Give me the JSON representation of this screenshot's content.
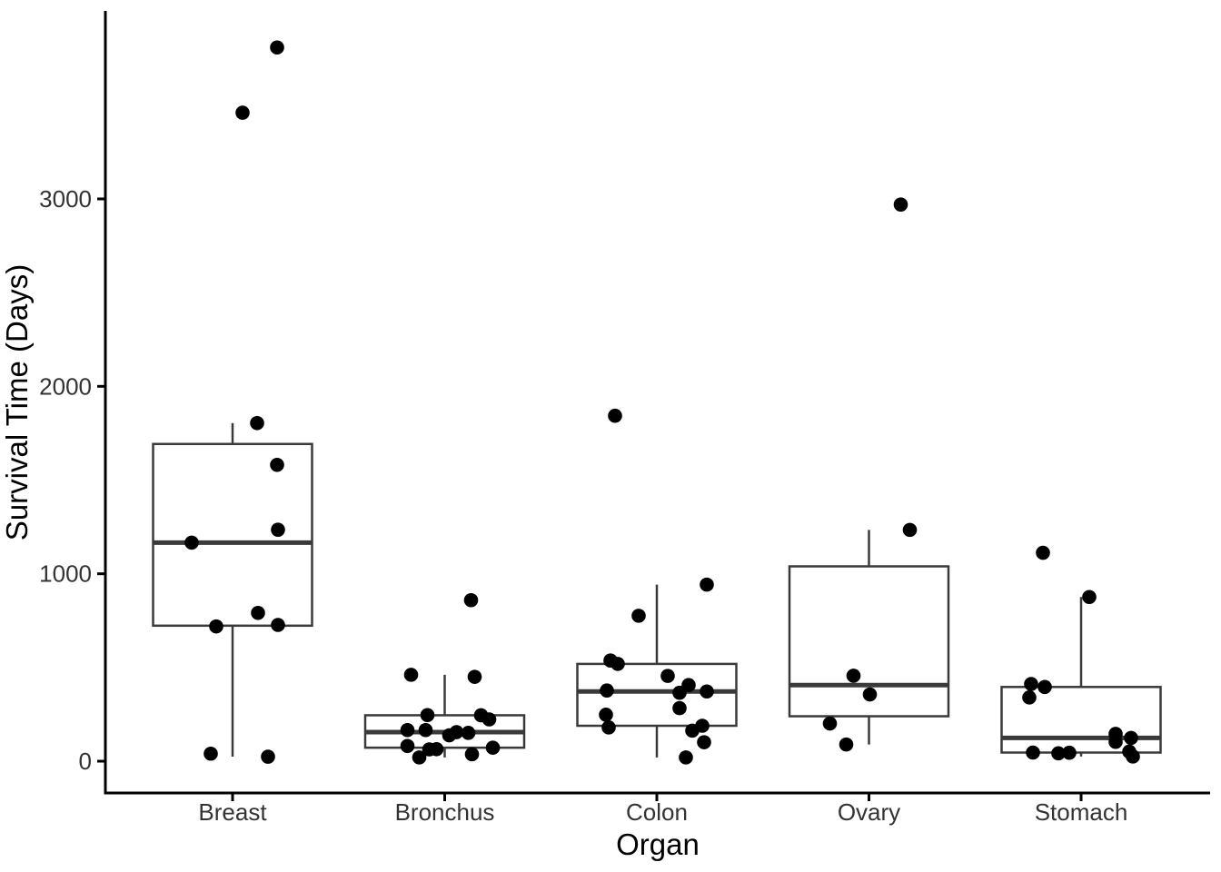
{
  "colors": {
    "background": "#ffffff",
    "axis": "#000000",
    "box_stroke": "#3a3a3a",
    "box_fill": "#ffffff",
    "point": "#000000",
    "tick_text": "#333333",
    "title_text": "#000000"
  },
  "chart_data": {
    "type": "boxplot",
    "overlay": "jittered points",
    "title": "",
    "xlabel": "Organ",
    "ylabel": "Survival Time (Days)",
    "categories": [
      "Breast",
      "Bronchus",
      "Colon",
      "Ovary",
      "Stomach"
    ],
    "y_ticks": [
      0,
      1000,
      2000,
      3000
    ],
    "ylim": [
      0,
      4000
    ],
    "grid": "off",
    "legend": "none",
    "series": [
      {
        "name": "Breast",
        "values": [
          1235,
          24,
          1581,
          1166,
          40,
          727,
          3808,
          791,
          1804,
          3460,
          719
        ],
        "box": {
          "lower_whisker": 24,
          "q1": 723,
          "median": 1166,
          "q3": 1692.5,
          "upper_whisker": 1804
        },
        "points": [
          {
            "v": 3808,
            "dx": 49
          },
          {
            "v": 3460,
            "dx": 11
          },
          {
            "v": 1804,
            "dx": 27
          },
          {
            "v": 1581,
            "dx": 49
          },
          {
            "v": 1235,
            "dx": 50
          },
          {
            "v": 1166,
            "dx": -45
          },
          {
            "v": 791,
            "dx": 28
          },
          {
            "v": 727,
            "dx": 50
          },
          {
            "v": 719,
            "dx": -18
          },
          {
            "v": 40,
            "dx": -24
          },
          {
            "v": 24,
            "dx": 39
          }
        ]
      },
      {
        "name": "Bronchus",
        "values": [
          81,
          461,
          20,
          450,
          246,
          166,
          63,
          64,
          155,
          859,
          151,
          166,
          37,
          223,
          138,
          72,
          245
        ],
        "box": {
          "lower_whisker": 20,
          "q1": 72,
          "median": 155,
          "q3": 245,
          "upper_whisker": 461
        },
        "points": [
          {
            "v": 859,
            "dx": 29
          },
          {
            "v": 461,
            "dx": -37
          },
          {
            "v": 450,
            "dx": 33
          },
          {
            "v": 246,
            "dx": -19
          },
          {
            "v": 245,
            "dx": 40
          },
          {
            "v": 223,
            "dx": 49
          },
          {
            "v": 166,
            "dx": -41
          },
          {
            "v": 166,
            "dx": -21
          },
          {
            "v": 155,
            "dx": 13
          },
          {
            "v": 151,
            "dx": 26
          },
          {
            "v": 138,
            "dx": 5
          },
          {
            "v": 81,
            "dx": -41
          },
          {
            "v": 72,
            "dx": 53
          },
          {
            "v": 64,
            "dx": -9
          },
          {
            "v": 63,
            "dx": -17
          },
          {
            "v": 37,
            "dx": 30
          },
          {
            "v": 20,
            "dx": -28
          }
        ]
      },
      {
        "name": "Colon",
        "values": [
          248,
          377,
          189,
          1843,
          180,
          537,
          519,
          455,
          406,
          365,
          942,
          776,
          372,
          163,
          101,
          20,
          283
        ],
        "box": {
          "lower_whisker": 20,
          "q1": 189,
          "median": 372,
          "q3": 519,
          "upper_whisker": 942
        },
        "points": [
          {
            "v": 1843,
            "dx": -46
          },
          {
            "v": 942,
            "dx": 55
          },
          {
            "v": 776,
            "dx": -20
          },
          {
            "v": 537,
            "dx": -51
          },
          {
            "v": 519,
            "dx": -43
          },
          {
            "v": 455,
            "dx": 12
          },
          {
            "v": 406,
            "dx": 35
          },
          {
            "v": 377,
            "dx": -55
          },
          {
            "v": 372,
            "dx": 55
          },
          {
            "v": 365,
            "dx": 25
          },
          {
            "v": 283,
            "dx": 25
          },
          {
            "v": 248,
            "dx": -56
          },
          {
            "v": 189,
            "dx": 50
          },
          {
            "v": 180,
            "dx": -53
          },
          {
            "v": 163,
            "dx": 39
          },
          {
            "v": 101,
            "dx": 52
          },
          {
            "v": 20,
            "dx": 32
          }
        ]
      },
      {
        "name": "Ovary",
        "values": [
          1234,
          89,
          201,
          356,
          2970,
          456
        ],
        "box": {
          "lower_whisker": 89,
          "q1": 239.75,
          "median": 406,
          "q3": 1039.5,
          "upper_whisker": 1234
        },
        "points": [
          {
            "v": 2970,
            "dx": 35
          },
          {
            "v": 1234,
            "dx": 45
          },
          {
            "v": 456,
            "dx": -17
          },
          {
            "v": 356,
            "dx": 1
          },
          {
            "v": 201,
            "dx": -43
          },
          {
            "v": 89,
            "dx": -25
          }
        ]
      },
      {
        "name": "Stomach",
        "values": [
          124,
          42,
          25,
          45,
          412,
          51,
          1112,
          46,
          103,
          876,
          146,
          340,
          396
        ],
        "box": {
          "lower_whisker": 25,
          "q1": 46,
          "median": 124,
          "q3": 396,
          "upper_whisker": 876
        },
        "points": [
          {
            "v": 1112,
            "dx": -42
          },
          {
            "v": 876,
            "dx": 9
          },
          {
            "v": 412,
            "dx": -55
          },
          {
            "v": 396,
            "dx": -40
          },
          {
            "v": 340,
            "dx": -57
          },
          {
            "v": 146,
            "dx": 38
          },
          {
            "v": 124,
            "dx": 55
          },
          {
            "v": 103,
            "dx": 38
          },
          {
            "v": 51,
            "dx": 53
          },
          {
            "v": 46,
            "dx": -53
          },
          {
            "v": 45,
            "dx": -13
          },
          {
            "v": 42,
            "dx": -25
          },
          {
            "v": 25,
            "dx": 57
          }
        ]
      }
    ]
  }
}
